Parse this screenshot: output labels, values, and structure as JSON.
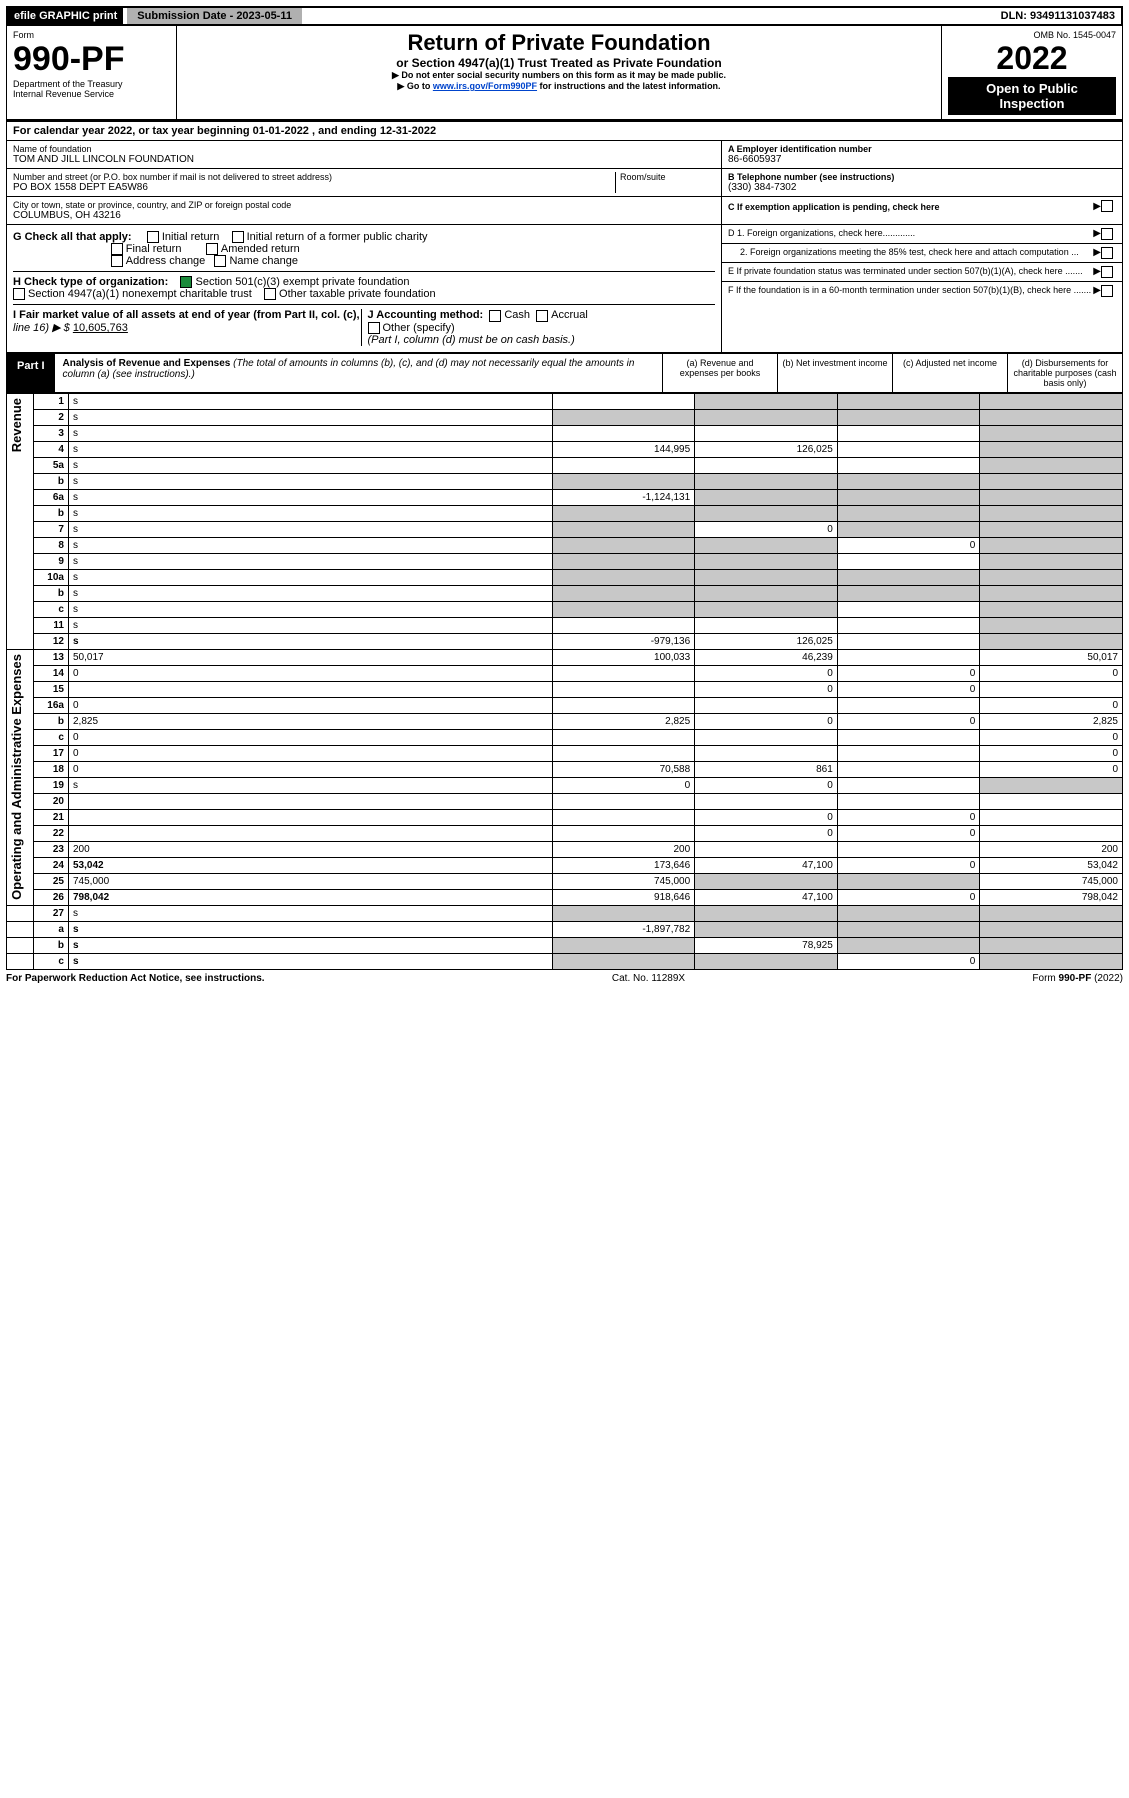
{
  "topbar": {
    "efile": "efile GRAPHIC print",
    "submission": "Submission Date - 2023-05-11",
    "dln": "DLN: 93491131037483"
  },
  "header": {
    "form_label": "Form",
    "form_no": "990-PF",
    "dept": "Department of the Treasury",
    "irs": "Internal Revenue Service",
    "title": "Return of Private Foundation",
    "subtitle": "or Section 4947(a)(1) Trust Treated as Private Foundation",
    "note1": "▶ Do not enter social security numbers on this form as it may be made public.",
    "note2_pre": "▶ Go to ",
    "note2_link": "www.irs.gov/Form990PF",
    "note2_post": " for instructions and the latest information.",
    "omb": "OMB No. 1545-0047",
    "year": "2022",
    "open": "Open to Public Inspection"
  },
  "calyear": {
    "text_pre": "For calendar year 2022, or tax year beginning ",
    "begin": "01-01-2022",
    "mid": " , and ending ",
    "end": "12-31-2022"
  },
  "entity": {
    "name_label": "Name of foundation",
    "name": "TOM AND JILL LINCOLN FOUNDATION",
    "addr_label": "Number and street (or P.O. box number if mail is not delivered to street address)",
    "room_label": "Room/suite",
    "addr": "PO BOX 1558 DEPT EA5W86",
    "city_label": "City or town, state or province, country, and ZIP or foreign postal code",
    "city": "COLUMBUS, OH  43216",
    "ein_label": "A Employer identification number",
    "ein": "86-6605937",
    "tel_label": "B Telephone number (see instructions)",
    "tel": "(330) 384-7302",
    "c_label": "C If exemption application is pending, check here",
    "d1": "D 1. Foreign organizations, check here.............",
    "d2": "2. Foreign organizations meeting the 85% test, check here and attach computation ...",
    "e": "E If private foundation status was terminated under section 507(b)(1)(A), check here .......",
    "f": "F If the foundation is in a 60-month termination under section 507(b)(1)(B), check here ......."
  },
  "checks": {
    "g_label": "G Check all that apply:",
    "initial": "Initial return",
    "initial_former": "Initial return of a former public charity",
    "final": "Final return",
    "amended": "Amended return",
    "addr_change": "Address change",
    "name_change": "Name change",
    "h_label": "H Check type of organization:",
    "h1": "Section 501(c)(3) exempt private foundation",
    "h2": "Section 4947(a)(1) nonexempt charitable trust",
    "h3": "Other taxable private foundation",
    "i_label": "I Fair market value of all assets at end of year (from Part II, col. (c),",
    "i_line": "line 16) ▶ $",
    "i_value": "10,605,763",
    "j_label": "J Accounting method:",
    "cash": "Cash",
    "accrual": "Accrual",
    "other": "Other (specify)",
    "j_note": "(Part I, column (d) must be on cash basis.)"
  },
  "part1": {
    "tab": "Part I",
    "title": "Analysis of Revenue and Expenses",
    "title_note": " (The total of amounts in columns (b), (c), and (d) may not necessarily equal the amounts in column (a) (see instructions).)",
    "col_a": "(a) Revenue and expenses per books",
    "col_b": "(b) Net investment income",
    "col_c": "(c) Adjusted net income",
    "col_d": "(d) Disbursements for charitable purposes (cash basis only)"
  },
  "vlabels": {
    "rev": "Revenue",
    "exp": "Operating and Administrative Expenses"
  },
  "rows": [
    {
      "n": "1",
      "d": "s",
      "a": "",
      "b": "s",
      "c": "s"
    },
    {
      "n": "2",
      "d": "s",
      "a": "s",
      "b": "s",
      "c": "s",
      "checked": true
    },
    {
      "n": "3",
      "d": "s",
      "a": "",
      "b": "",
      "c": ""
    },
    {
      "n": "4",
      "d": "s",
      "a": "144,995",
      "b": "126,025",
      "c": ""
    },
    {
      "n": "5a",
      "d": "s",
      "a": "",
      "b": "",
      "c": ""
    },
    {
      "n": "b",
      "d": "s",
      "a": "s",
      "b": "s",
      "c": "s"
    },
    {
      "n": "6a",
      "d": "s",
      "a": "-1,124,131",
      "b": "s",
      "c": "s"
    },
    {
      "n": "b",
      "d": "s",
      "a": "s",
      "b": "s",
      "c": "s"
    },
    {
      "n": "7",
      "d": "s",
      "a": "s",
      "b": "0",
      "c": "s"
    },
    {
      "n": "8",
      "d": "s",
      "a": "s",
      "b": "s",
      "c": "0"
    },
    {
      "n": "9",
      "d": "s",
      "a": "s",
      "b": "s",
      "c": ""
    },
    {
      "n": "10a",
      "d": "s",
      "a": "s",
      "b": "s",
      "c": "s"
    },
    {
      "n": "b",
      "d": "s",
      "a": "s",
      "b": "s",
      "c": "s"
    },
    {
      "n": "c",
      "d": "s",
      "a": "s",
      "b": "s",
      "c": ""
    },
    {
      "n": "11",
      "d": "s",
      "a": "",
      "b": "",
      "c": ""
    },
    {
      "n": "12",
      "d": "s",
      "a": "-979,136",
      "b": "126,025",
      "c": "",
      "bold": true
    }
  ],
  "exprows": [
    {
      "n": "13",
      "d": "50,017",
      "a": "100,033",
      "b": "46,239",
      "c": ""
    },
    {
      "n": "14",
      "d": "0",
      "a": "",
      "b": "0",
      "c": "0"
    },
    {
      "n": "15",
      "d": "",
      "a": "",
      "b": "0",
      "c": "0"
    },
    {
      "n": "16a",
      "d": "0",
      "a": "",
      "b": "",
      "c": ""
    },
    {
      "n": "b",
      "d": "2,825",
      "a": "2,825",
      "b": "0",
      "c": "0"
    },
    {
      "n": "c",
      "d": "0",
      "a": "",
      "b": "",
      "c": ""
    },
    {
      "n": "17",
      "d": "0",
      "a": "",
      "b": "",
      "c": ""
    },
    {
      "n": "18",
      "d": "0",
      "a": "70,588",
      "b": "861",
      "c": ""
    },
    {
      "n": "19",
      "d": "s",
      "a": "0",
      "b": "0",
      "c": ""
    },
    {
      "n": "20",
      "d": "",
      "a": "",
      "b": "",
      "c": ""
    },
    {
      "n": "21",
      "d": "",
      "a": "",
      "b": "0",
      "c": "0"
    },
    {
      "n": "22",
      "d": "",
      "a": "",
      "b": "0",
      "c": "0"
    },
    {
      "n": "23",
      "d": "200",
      "a": "200",
      "b": "",
      "c": ""
    },
    {
      "n": "24",
      "d": "53,042",
      "a": "173,646",
      "b": "47,100",
      "c": "0",
      "bold": true
    },
    {
      "n": "25",
      "d": "745,000",
      "a": "745,000",
      "b": "s",
      "c": "s"
    },
    {
      "n": "26",
      "d": "798,042",
      "a": "918,646",
      "b": "47,100",
      "c": "0",
      "bold": true
    }
  ],
  "netrows": [
    {
      "n": "27",
      "d": "s",
      "a": "s",
      "b": "s",
      "c": "s"
    },
    {
      "n": "a",
      "d": "s",
      "a": "-1,897,782",
      "b": "s",
      "c": "s",
      "bold": true
    },
    {
      "n": "b",
      "d": "s",
      "a": "s",
      "b": "78,925",
      "c": "s",
      "bold": true
    },
    {
      "n": "c",
      "d": "s",
      "a": "s",
      "b": "s",
      "c": "0",
      "bold": true
    }
  ],
  "footer": {
    "left": "For Paperwork Reduction Act Notice, see instructions.",
    "mid": "Cat. No. 11289X",
    "right": "Form 990-PF (2022)"
  },
  "colors": {
    "shade": "#c8c8c8",
    "link": "#0044cc",
    "check": "#1a8a3a"
  }
}
